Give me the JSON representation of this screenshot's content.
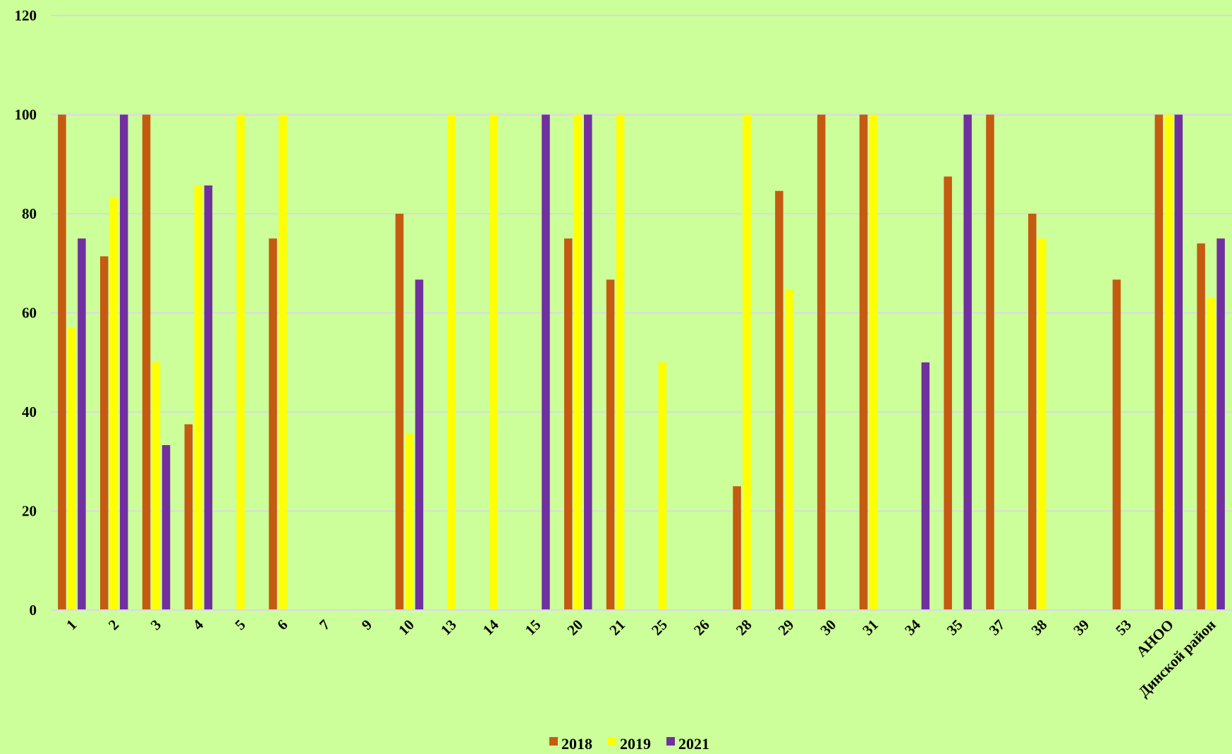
{
  "chart_data": {
    "type": "bar",
    "categories": [
      "1",
      "2",
      "3",
      "4",
      "5",
      "6",
      "7",
      "9",
      "10",
      "13",
      "14",
      "15",
      "20",
      "21",
      "25",
      "26",
      "28",
      "29",
      "30",
      "31",
      "34",
      "35",
      "37",
      "38",
      "39",
      "53",
      "АНОО",
      "Динской район"
    ],
    "series": [
      {
        "name": "2018",
        "color": "#c55a11",
        "values": [
          100,
          71.4,
          100,
          37.5,
          null,
          75,
          null,
          null,
          80,
          null,
          null,
          null,
          75,
          66.7,
          null,
          null,
          25,
          84.6,
          100,
          100,
          null,
          87.5,
          100,
          80,
          null,
          66.7,
          100,
          74
        ]
      },
      {
        "name": "2019",
        "color": "#ffff00",
        "values": [
          57.1,
          83.3,
          50,
          85.7,
          100,
          100,
          null,
          null,
          35.7,
          100,
          100,
          null,
          100,
          100,
          50,
          null,
          100,
          64.7,
          null,
          100,
          null,
          null,
          null,
          75,
          null,
          null,
          100,
          63
        ]
      },
      {
        "name": "2021",
        "color": "#7030a0",
        "values": [
          75,
          100,
          33.3,
          85.7,
          null,
          null,
          null,
          null,
          66.7,
          null,
          null,
          100,
          100,
          null,
          null,
          null,
          null,
          null,
          null,
          null,
          50,
          100,
          null,
          null,
          null,
          null,
          100,
          75
        ]
      }
    ],
    "ylim": [
      0,
      120
    ],
    "yticks": [
      0,
      20,
      40,
      60,
      80,
      100,
      120
    ],
    "grid": true,
    "legend_position": "bottom-center"
  }
}
